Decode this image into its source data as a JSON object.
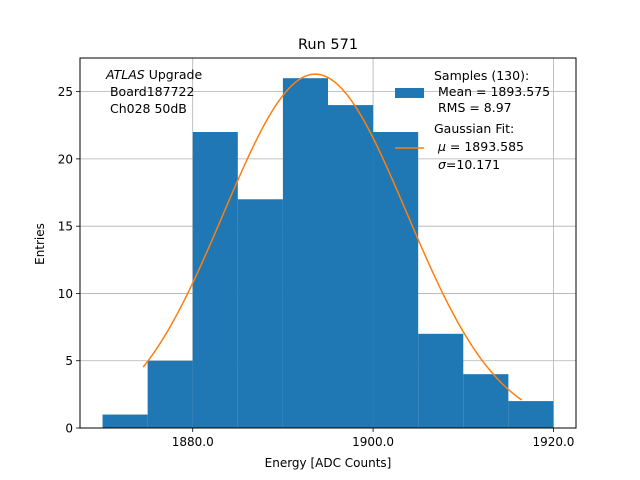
{
  "chart_data": {
    "type": "bar",
    "title": "Run 571",
    "xlabel": "Energy [ADC Counts]",
    "ylabel": "Entries",
    "xlim": [
      1867.5,
      1922.5
    ],
    "ylim": [
      0,
      27.5
    ],
    "x_ticks": [
      1880,
      1900,
      1920
    ],
    "x_tick_labels": [
      "1880.0",
      "1900.0",
      "1920.0"
    ],
    "y_ticks": [
      0,
      5,
      10,
      15,
      20,
      25
    ],
    "y_tick_labels": [
      "0",
      "5",
      "10",
      "15",
      "20",
      "25"
    ],
    "grid": true,
    "bin_edges": [
      1870,
      1875,
      1880,
      1885,
      1890,
      1895,
      1900,
      1905,
      1910,
      1915,
      1920
    ],
    "values": [
      1,
      5,
      22,
      17,
      26,
      24,
      22,
      7,
      4,
      2
    ],
    "bar_color": "#1f77b4",
    "fit": {
      "type": "gaussian",
      "color": "#ff7f0e",
      "mu": 1893.585,
      "sigma": 10.171,
      "amplitude": 26.3,
      "x_range": [
        1874.5,
        1916.5
      ]
    },
    "annotation": {
      "italic": "ATLAS",
      "rest": " Upgrade",
      "line2": " Board187722",
      "line3": " Ch028 50dB"
    },
    "legend": {
      "position": "top-right",
      "hist_line1": "Samples (130):",
      "hist_line2": " Mean = 1893.575",
      "hist_line3": " RMS = 8.97",
      "fit_line1": "Gaussian Fit:",
      "fit_mu_sym": "μ",
      "fit_mu_rest": " = 1893.585",
      "fit_sigma_sym": "σ",
      "fit_sigma_rest": "=10.171"
    }
  }
}
